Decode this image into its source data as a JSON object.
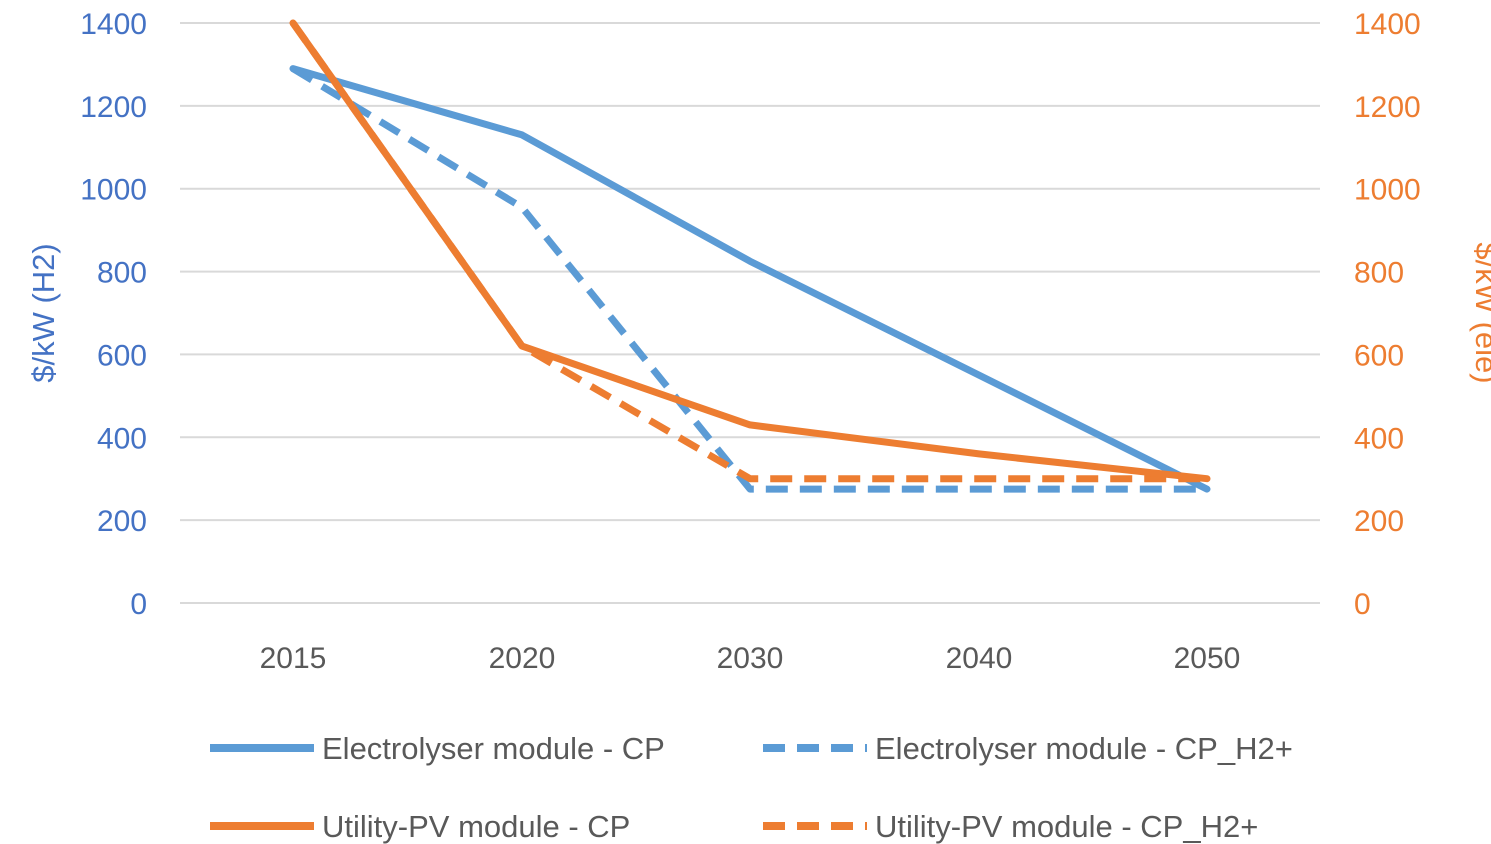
{
  "chart_data": {
    "type": "line",
    "categories": [
      "2015",
      "2020",
      "2030",
      "2040",
      "2050"
    ],
    "ylabel_left": "$/kW (H2)",
    "ylabel_right": "$/kW (ele)",
    "ylim_left": [
      0,
      1400
    ],
    "ylim_right": [
      0,
      1400
    ],
    "yticks_left": [
      0,
      200,
      400,
      600,
      800,
      1000,
      1200,
      1400
    ],
    "yticks_right": [
      0,
      200,
      400,
      600,
      800,
      1000,
      1200,
      1400
    ],
    "grid": true,
    "legend_position": "bottom",
    "series": [
      {
        "name": "Electrolyser module - CP",
        "axis": "left",
        "color": "#5B9BD5",
        "dashed": false,
        "values": [
          1290,
          1130,
          825,
          550,
          275
        ]
      },
      {
        "name": "Electrolyser module - CP_H2+",
        "axis": "left",
        "color": "#5B9BD5",
        "dashed": true,
        "values": [
          1290,
          955,
          275,
          275,
          275
        ]
      },
      {
        "name": "Utility-PV module - CP",
        "axis": "right",
        "color": "#ED7D31",
        "dashed": false,
        "values": [
          1400,
          620,
          430,
          360,
          300
        ]
      },
      {
        "name": "Utility-PV module - CP_H2+",
        "axis": "right",
        "color": "#ED7D31",
        "dashed": true,
        "values": [
          1400,
          620,
          300,
          300,
          300
        ]
      }
    ],
    "colors": {
      "left_axis": "#4472C4",
      "right_axis": "#ED7D31",
      "grid": "#D9D9D9",
      "x_ticks": "#595959"
    }
  }
}
